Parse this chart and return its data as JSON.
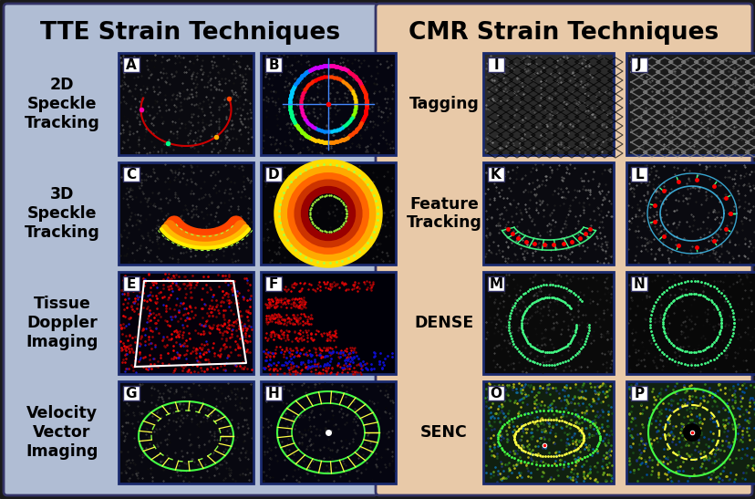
{
  "title_left": "TTE Strain Techniques",
  "title_right": "CMR Strain Techniques",
  "bg_left": "#b0bdd4",
  "bg_right": "#e8c9a8",
  "border_color": "#1a2a6e",
  "panel_border": "#333366",
  "title_fontsize": 19,
  "label_fontsize": 12.5,
  "letter_fontsize": 11,
  "left_labels": [
    "2D\nSpeckle\nTracking",
    "3D\nSpeckle\nTracking",
    "Tissue\nDoppler\nImaging",
    "Velocity\nVector\nImaging"
  ],
  "right_labels": [
    "Tagging",
    "Feature\nTracking",
    "DENSE",
    "SENC"
  ],
  "left_letters": [
    "A",
    "B",
    "C",
    "D",
    "E",
    "F",
    "G",
    "H"
  ],
  "right_letters": [
    "I",
    "J",
    "K",
    "L",
    "M",
    "N",
    "O",
    "P"
  ]
}
